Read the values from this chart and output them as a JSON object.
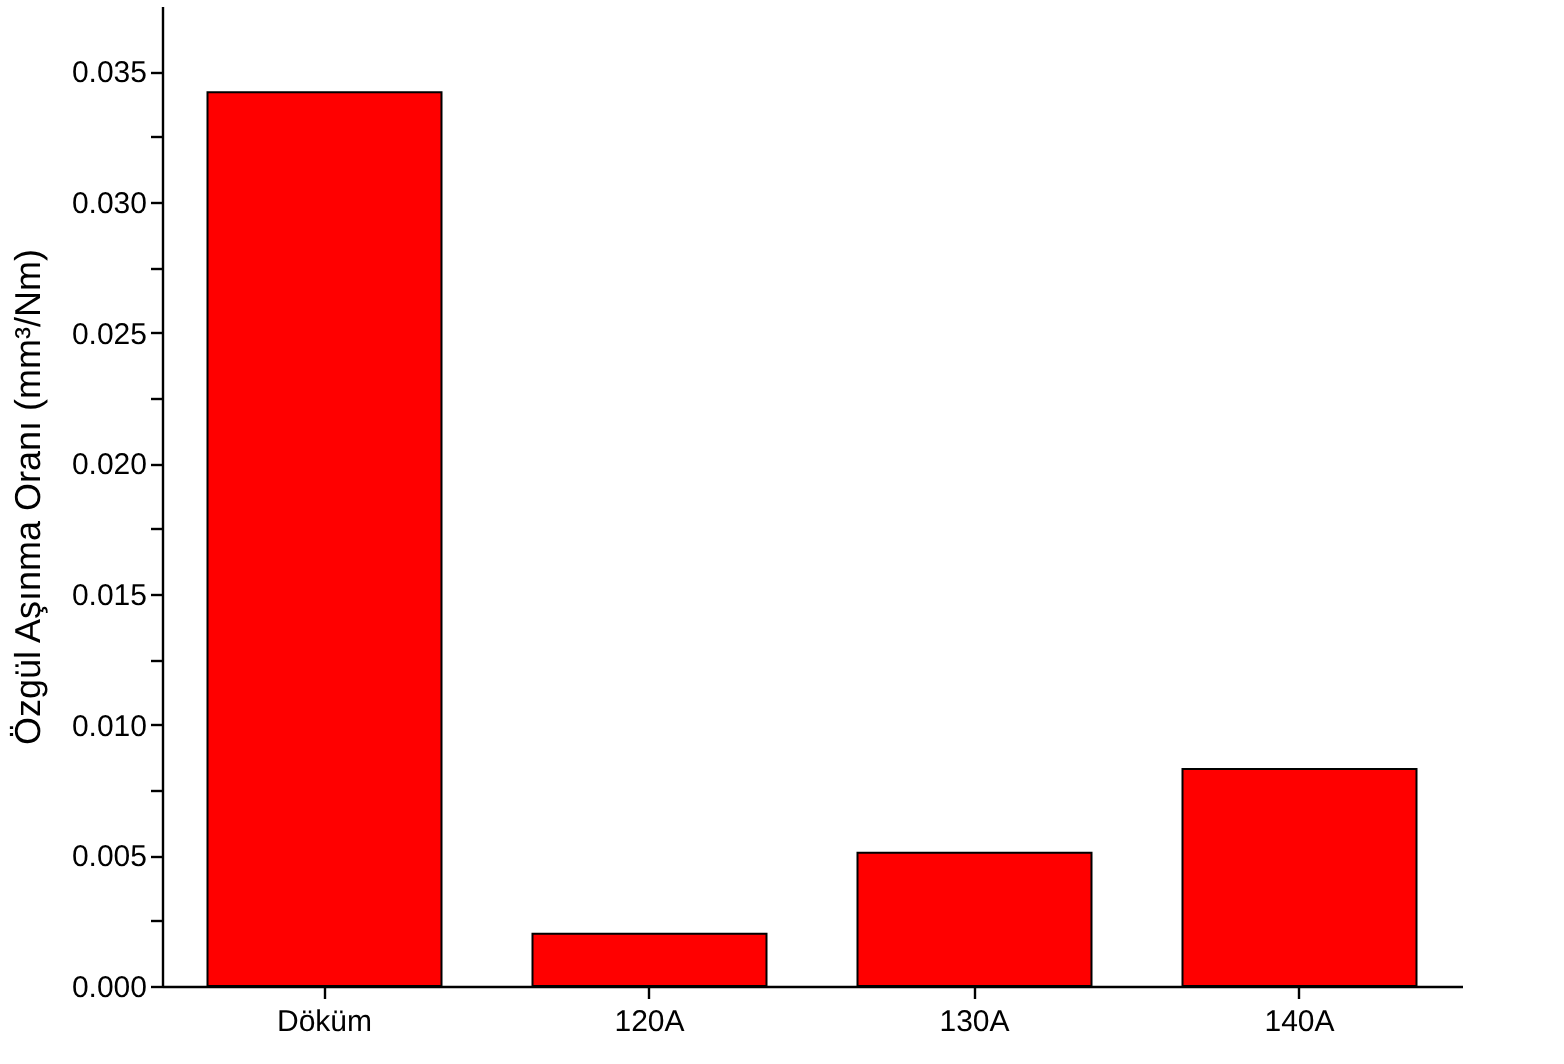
{
  "chart_data": {
    "type": "bar",
    "ylabel": "Özgül Aşınma Oranı (mm³/Nm)",
    "categories": [
      "Döküm",
      "120A",
      "130A",
      "140A"
    ],
    "values": [
      0.0342,
      0.002,
      0.0051,
      0.0083
    ],
    "color": "#ff0000",
    "ylim": [
      0,
      0.0375
    ],
    "yticks": [
      {
        "value": 0,
        "label": "0.000"
      },
      {
        "value": 0.0025,
        "label": null
      },
      {
        "value": 0.005,
        "label": "0.005"
      },
      {
        "value": 0.0075,
        "label": null
      },
      {
        "value": 0.01,
        "label": "0.010"
      },
      {
        "value": 0.0125,
        "label": null
      },
      {
        "value": 0.015,
        "label": "0.015"
      },
      {
        "value": 0.0175,
        "label": null
      },
      {
        "value": 0.02,
        "label": "0.020"
      },
      {
        "value": 0.0225,
        "label": null
      },
      {
        "value": 0.025,
        "label": "0.025"
      },
      {
        "value": 0.0275,
        "label": null
      },
      {
        "value": 0.03,
        "label": "0.030"
      },
      {
        "value": 0.0325,
        "label": null
      },
      {
        "value": 0.035,
        "label": "0.035"
      }
    ],
    "grid": false
  }
}
